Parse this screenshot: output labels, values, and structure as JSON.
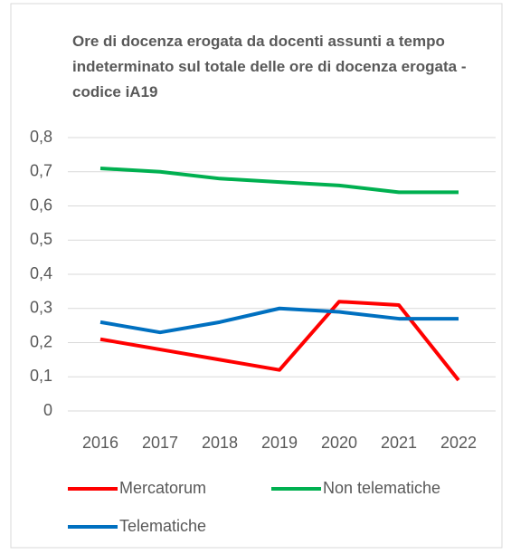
{
  "chart_data": {
    "type": "line",
    "title": "Ore di docenza erogata da docenti assunti a tempo indeterminato sul totale delle ore di docenza erogata - codice iA19",
    "categories": [
      "2016",
      "2017",
      "2018",
      "2019",
      "2020",
      "2021",
      "2022"
    ],
    "series": [
      {
        "name": "Mercatorum",
        "color": "#ff0000",
        "values": [
          0.21,
          0.18,
          0.15,
          0.12,
          0.32,
          0.31,
          0.09
        ]
      },
      {
        "name": "Non telematiche",
        "color": "#00b050",
        "values": [
          0.71,
          0.7,
          0.68,
          0.67,
          0.66,
          0.64,
          0.64
        ]
      },
      {
        "name": "Telematiche",
        "color": "#0070c0",
        "values": [
          0.26,
          0.23,
          0.26,
          0.3,
          0.29,
          0.27,
          0.27
        ]
      }
    ],
    "ylim": [
      0,
      0.8
    ],
    "yticks": [
      0,
      {
        "value": 0.1,
        "label": "0,1"
      },
      {
        "value": 0.2,
        "label": "0,2"
      },
      {
        "value": 0.3,
        "label": "0,3"
      },
      {
        "value": 0.4,
        "label": "0,4"
      },
      {
        "value": 0.5,
        "label": "0,5"
      },
      {
        "value": 0.6,
        "label": "0,6"
      },
      {
        "value": 0.7,
        "label": "0,7"
      },
      {
        "value": 0.8,
        "label": "0,8"
      }
    ],
    "grid": true,
    "legend": "bottom"
  }
}
